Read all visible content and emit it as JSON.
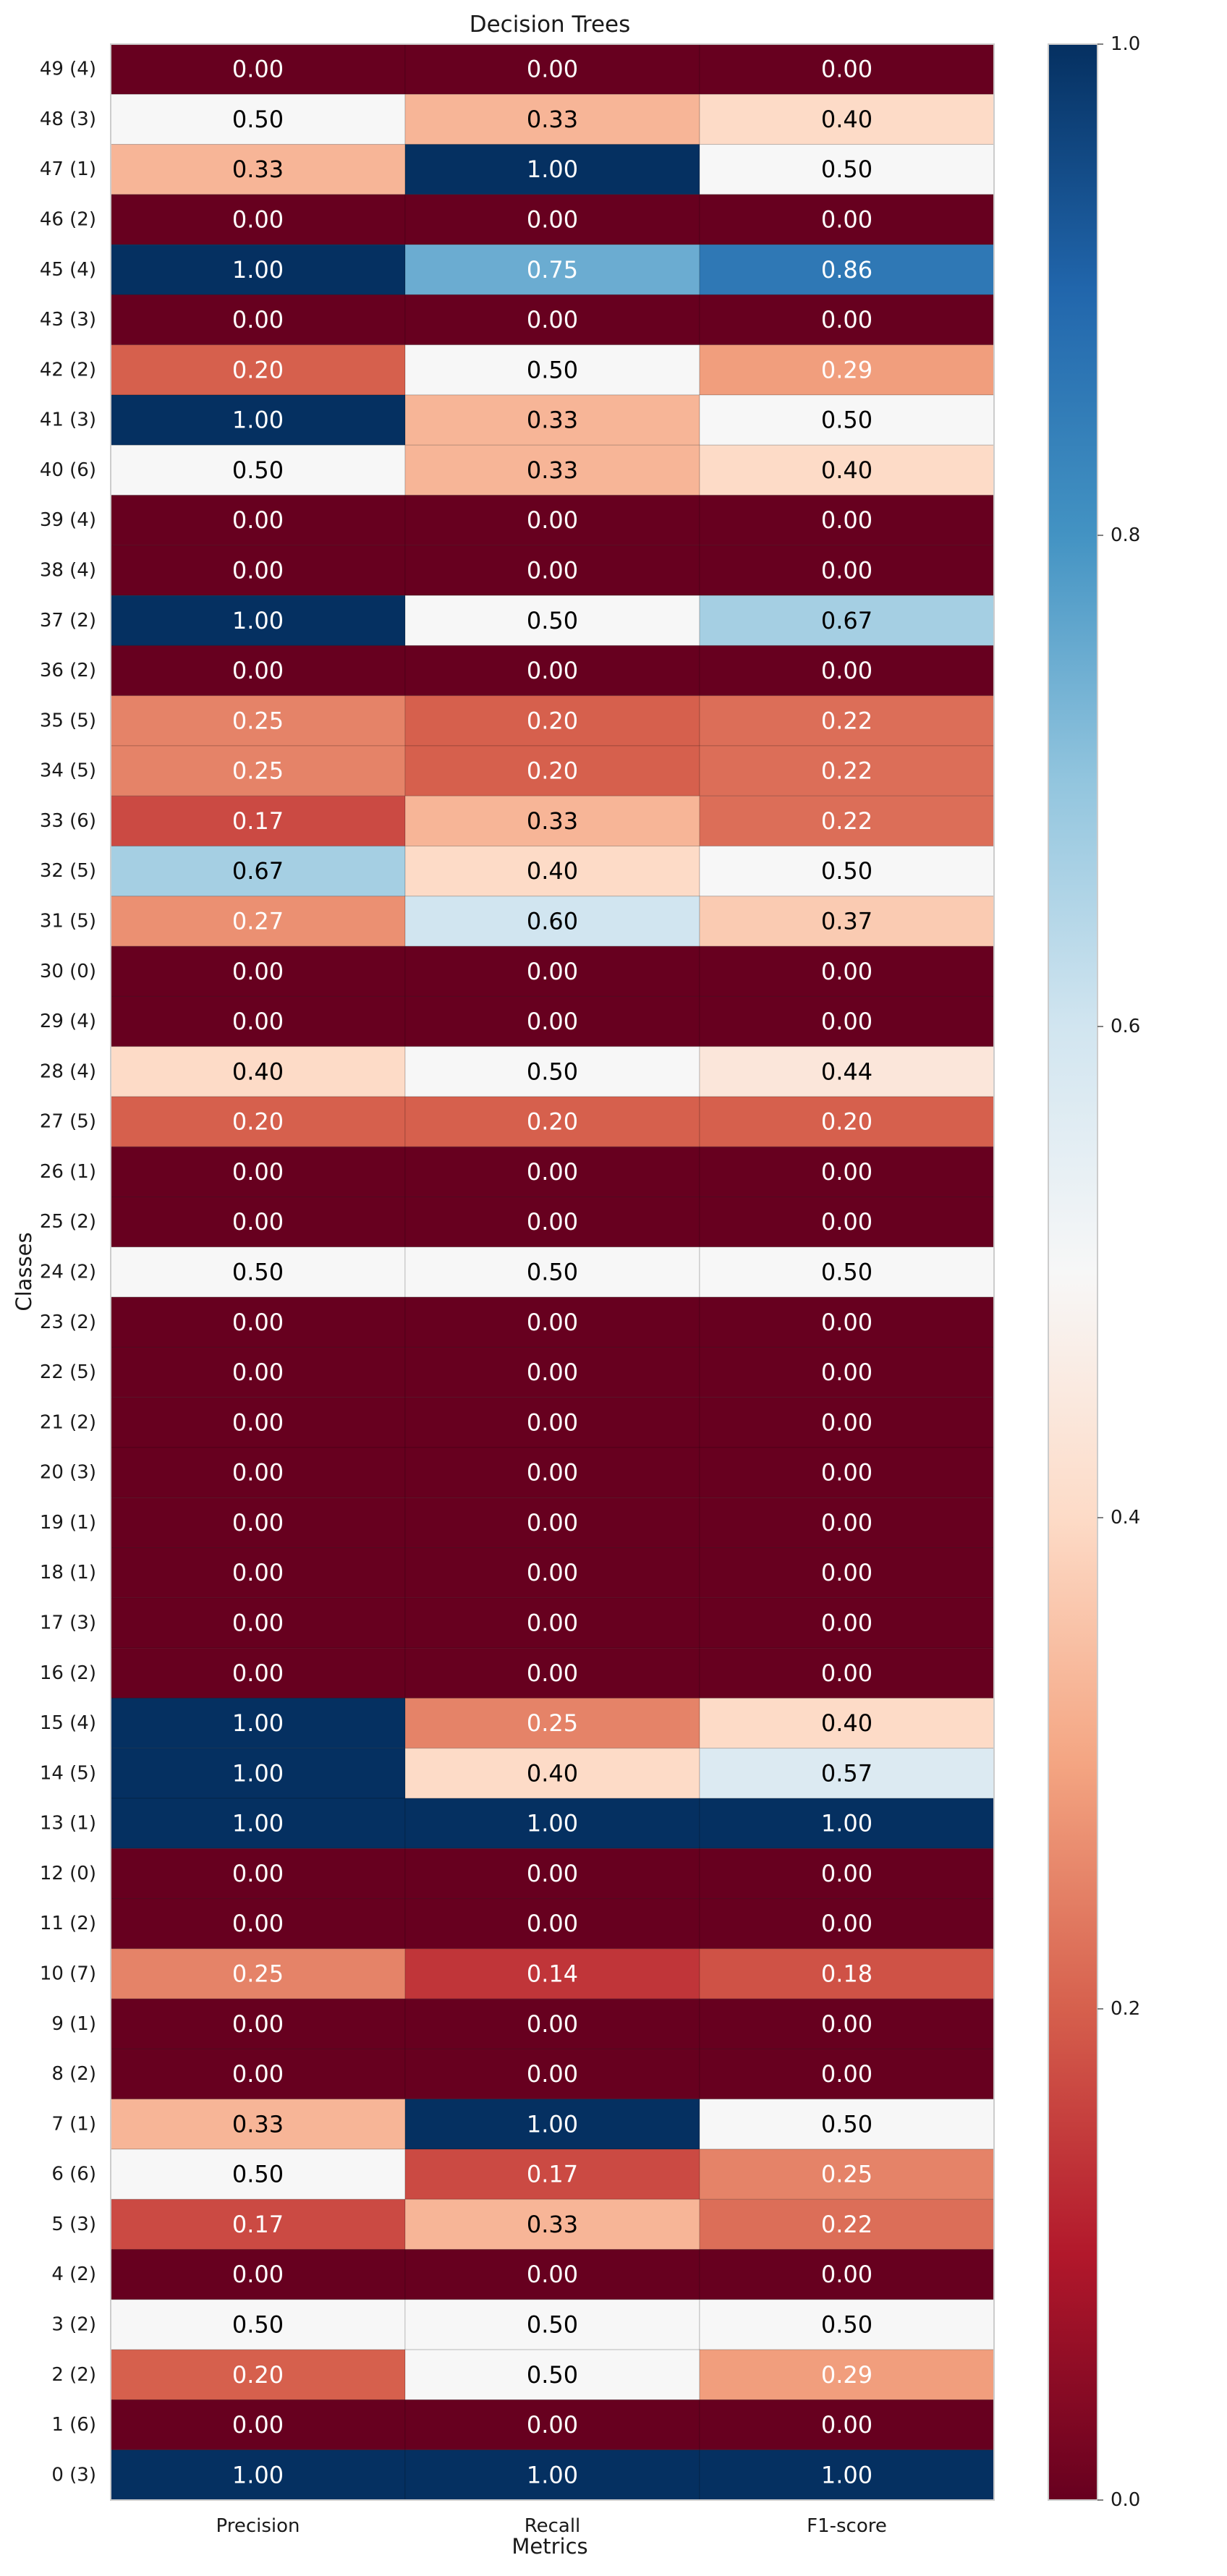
{
  "chart_data": {
    "type": "heatmap",
    "title": "Decision Trees",
    "xlabel": "Metrics",
    "ylabel": "Classes",
    "columns": [
      "Precision",
      "Recall",
      "F1-score"
    ],
    "rows": [
      {
        "label": "49 (4)",
        "values": [
          0.0,
          0.0,
          0.0
        ]
      },
      {
        "label": "48 (3)",
        "values": [
          0.5,
          0.33,
          0.4
        ]
      },
      {
        "label": "47 (1)",
        "values": [
          0.33,
          1.0,
          0.5
        ]
      },
      {
        "label": "46 (2)",
        "values": [
          0.0,
          0.0,
          0.0
        ]
      },
      {
        "label": "45 (4)",
        "values": [
          1.0,
          0.75,
          0.86
        ]
      },
      {
        "label": "43 (3)",
        "values": [
          0.0,
          0.0,
          0.0
        ]
      },
      {
        "label": "42 (2)",
        "values": [
          0.2,
          0.5,
          0.29
        ]
      },
      {
        "label": "41 (3)",
        "values": [
          1.0,
          0.33,
          0.5
        ]
      },
      {
        "label": "40 (6)",
        "values": [
          0.5,
          0.33,
          0.4
        ]
      },
      {
        "label": "39 (4)",
        "values": [
          0.0,
          0.0,
          0.0
        ]
      },
      {
        "label": "38 (4)",
        "values": [
          0.0,
          0.0,
          0.0
        ]
      },
      {
        "label": "37 (2)",
        "values": [
          1.0,
          0.5,
          0.67
        ]
      },
      {
        "label": "36 (2)",
        "values": [
          0.0,
          0.0,
          0.0
        ]
      },
      {
        "label": "35 (5)",
        "values": [
          0.25,
          0.2,
          0.22
        ]
      },
      {
        "label": "34 (5)",
        "values": [
          0.25,
          0.2,
          0.22
        ]
      },
      {
        "label": "33 (6)",
        "values": [
          0.17,
          0.33,
          0.22
        ]
      },
      {
        "label": "32 (5)",
        "values": [
          0.67,
          0.4,
          0.5
        ]
      },
      {
        "label": "31 (5)",
        "values": [
          0.27,
          0.6,
          0.37
        ]
      },
      {
        "label": "30 (0)",
        "values": [
          0.0,
          0.0,
          0.0
        ]
      },
      {
        "label": "29 (4)",
        "values": [
          0.0,
          0.0,
          0.0
        ]
      },
      {
        "label": "28 (4)",
        "values": [
          0.4,
          0.5,
          0.44
        ]
      },
      {
        "label": "27 (5)",
        "values": [
          0.2,
          0.2,
          0.2
        ]
      },
      {
        "label": "26 (1)",
        "values": [
          0.0,
          0.0,
          0.0
        ]
      },
      {
        "label": "25 (2)",
        "values": [
          0.0,
          0.0,
          0.0
        ]
      },
      {
        "label": "24 (2)",
        "values": [
          0.5,
          0.5,
          0.5
        ]
      },
      {
        "label": "23 (2)",
        "values": [
          0.0,
          0.0,
          0.0
        ]
      },
      {
        "label": "22 (5)",
        "values": [
          0.0,
          0.0,
          0.0
        ]
      },
      {
        "label": "21 (2)",
        "values": [
          0.0,
          0.0,
          0.0
        ]
      },
      {
        "label": "20 (3)",
        "values": [
          0.0,
          0.0,
          0.0
        ]
      },
      {
        "label": "19 (1)",
        "values": [
          0.0,
          0.0,
          0.0
        ]
      },
      {
        "label": "18 (1)",
        "values": [
          0.0,
          0.0,
          0.0
        ]
      },
      {
        "label": "17 (3)",
        "values": [
          0.0,
          0.0,
          0.0
        ]
      },
      {
        "label": "16 (2)",
        "values": [
          0.0,
          0.0,
          0.0
        ]
      },
      {
        "label": "15 (4)",
        "values": [
          1.0,
          0.25,
          0.4
        ]
      },
      {
        "label": "14 (5)",
        "values": [
          1.0,
          0.4,
          0.57
        ]
      },
      {
        "label": "13 (1)",
        "values": [
          1.0,
          1.0,
          1.0
        ]
      },
      {
        "label": "12 (0)",
        "values": [
          0.0,
          0.0,
          0.0
        ]
      },
      {
        "label": "11 (2)",
        "values": [
          0.0,
          0.0,
          0.0
        ]
      },
      {
        "label": "10 (7)",
        "values": [
          0.25,
          0.14,
          0.18
        ]
      },
      {
        "label": "9 (1)",
        "values": [
          0.0,
          0.0,
          0.0
        ]
      },
      {
        "label": "8 (2)",
        "values": [
          0.0,
          0.0,
          0.0
        ]
      },
      {
        "label": "7 (1)",
        "values": [
          0.33,
          1.0,
          0.5
        ]
      },
      {
        "label": "6 (6)",
        "values": [
          0.5,
          0.17,
          0.25
        ]
      },
      {
        "label": "5 (3)",
        "values": [
          0.17,
          0.33,
          0.22
        ]
      },
      {
        "label": "4 (2)",
        "values": [
          0.0,
          0.0,
          0.0
        ]
      },
      {
        "label": "3 (2)",
        "values": [
          0.5,
          0.5,
          0.5
        ]
      },
      {
        "label": "2 (2)",
        "values": [
          0.2,
          0.5,
          0.29
        ]
      },
      {
        "label": "1 (6)",
        "values": [
          0.0,
          0.0,
          0.0
        ]
      },
      {
        "label": "0 (3)",
        "values": [
          1.0,
          1.0,
          1.0
        ]
      }
    ],
    "value_range": [
      0.0,
      1.0
    ],
    "colorbar": {
      "ticks": [
        "0.0",
        "0.2",
        "0.4",
        "0.6",
        "0.8",
        "1.0"
      ],
      "colormap": "RdBu",
      "low_color": "#67001f",
      "mid_color": "#f7f7f7",
      "high_color": "#053061"
    },
    "grid": false,
    "legend": "colorbar-right"
  }
}
